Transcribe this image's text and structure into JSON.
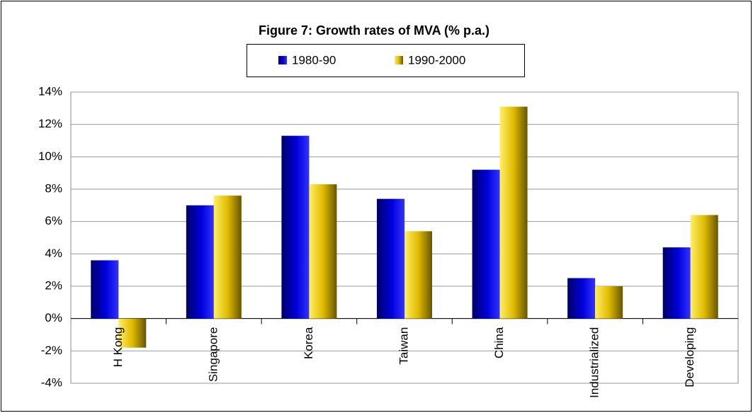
{
  "chart_data": {
    "type": "bar",
    "title": "Figure 7: Growth rates of MVA (% p.a.)",
    "categories": [
      "H Kong",
      "Singapore",
      "Korea",
      "Taiwan",
      "China",
      "Industrialized",
      "Developing"
    ],
    "series": [
      {
        "name": "1980-90",
        "color": "#0000dd",
        "values": [
          3.6,
          7.0,
          11.3,
          7.4,
          9.2,
          2.5,
          4.4
        ]
      },
      {
        "name": "1990-2000",
        "color": "#e0bb00",
        "values": [
          -1.8,
          7.6,
          8.3,
          5.4,
          13.1,
          2.0,
          6.4
        ]
      }
    ],
    "ylim": [
      -4,
      14
    ],
    "yticks": [
      {
        "value": -4,
        "label": "-4%"
      },
      {
        "value": -2,
        "label": "-2%"
      },
      {
        "value": 0,
        "label": "0%"
      },
      {
        "value": 2,
        "label": "2%"
      },
      {
        "value": 4,
        "label": "4%"
      },
      {
        "value": 6,
        "label": "6%"
      },
      {
        "value": 8,
        "label": "8%"
      },
      {
        "value": 10,
        "label": "10%"
      },
      {
        "value": 12,
        "label": "12%"
      },
      {
        "value": 14,
        "label": "14%"
      }
    ],
    "grid": true
  }
}
